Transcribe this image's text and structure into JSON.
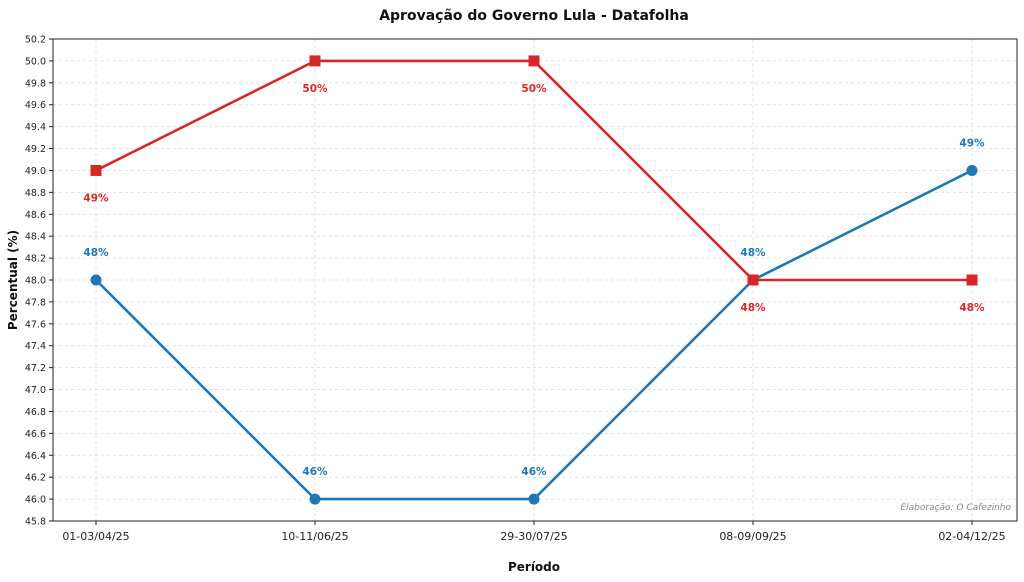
{
  "chart_data": {
    "type": "line",
    "title": "Aprovação do Governo Lula - Datafolha",
    "xlabel": "Período",
    "ylabel": "Percentual (%)",
    "categories": [
      "01-03/04/25",
      "10-11/06/25",
      "29-30/07/25",
      "08-09/09/25",
      "02-04/12/25"
    ],
    "ylim": [
      45.8,
      50.2
    ],
    "yticks": [
      "45.8",
      "46.0",
      "46.2",
      "46.4",
      "46.6",
      "46.8",
      "47.0",
      "47.2",
      "47.4",
      "47.6",
      "47.8",
      "48.0",
      "48.2",
      "48.4",
      "48.6",
      "48.8",
      "49.0",
      "49.2",
      "49.4",
      "49.6",
      "49.8",
      "50.0",
      "50.2"
    ],
    "grid": true,
    "series": [
      {
        "values": [
          48,
          46,
          46,
          48,
          49
        ],
        "labels": [
          "48%",
          "46%",
          "46%",
          "48%",
          "49%"
        ],
        "color": "#1f77b4",
        "marker": "circle",
        "label_position": "above"
      },
      {
        "values": [
          49,
          50,
          50,
          48,
          48
        ],
        "labels": [
          "49%",
          "50%",
          "50%",
          "48%",
          "48%"
        ],
        "color": "#d62728",
        "marker": "square",
        "label_position": "below"
      }
    ],
    "credit": "Elaboração: O Cafezinho"
  }
}
